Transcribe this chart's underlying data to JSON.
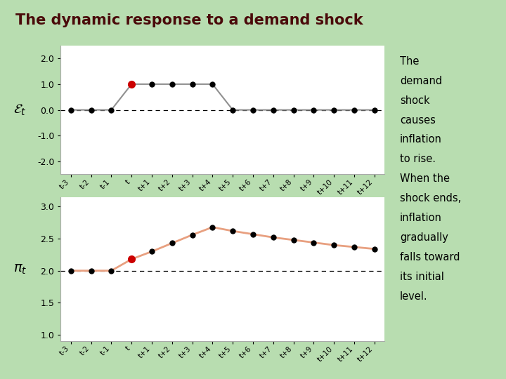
{
  "title": "The dynamic response to a demand shock",
  "title_color": "#4a0a0a",
  "bg_color": "#b8ddb0",
  "plot_bg_color": "#ffffff",
  "annotation_bg": "#f8c0c0",
  "x_labels": [
    "t-3",
    "t-2",
    "t-1",
    "t",
    "t+1",
    "t+2",
    "t+3",
    "t+4",
    "t+5",
    "t+6",
    "t+7",
    "t+8",
    "t+9",
    "t+10",
    "t+11",
    "t+12"
  ],
  "epsilon": [
    0.0,
    0.0,
    0.0,
    1.0,
    1.0,
    1.0,
    1.0,
    1.0,
    0.0,
    0.0,
    0.0,
    0.0,
    0.0,
    0.0,
    0.0,
    0.0
  ],
  "epsilon_ylim": [
    -2.5,
    2.5
  ],
  "epsilon_yticks": [
    -2.0,
    -1.0,
    0.0,
    1.0,
    2.0
  ],
  "epsilon_ytick_labels": [
    "-2.0",
    "-1.0",
    "0.0",
    "1.0",
    "2.0"
  ],
  "epsilon_red_idx": 3,
  "pi": [
    2.0,
    2.0,
    2.0,
    2.18,
    2.3,
    2.43,
    2.56,
    2.68,
    2.62,
    2.57,
    2.52,
    2.48,
    2.44,
    2.4,
    2.37,
    2.34
  ],
  "pi_ylim": [
    0.9,
    3.15
  ],
  "pi_yticks": [
    1.0,
    1.5,
    2.0,
    2.5,
    3.0
  ],
  "pi_ytick_labels": [
    "1.0",
    "1.5",
    "2.0",
    "2.5",
    "3.0"
  ],
  "pi_red_idx": 3,
  "epsilon_line_color": "#909090",
  "pi_line_color": "#e8a080",
  "dot_color": "#000000",
  "red_dot_color": "#cc0000",
  "dashed_line_color": "#000000",
  "annotation_lines": [
    "The",
    "demand",
    "shock",
    "causes",
    "inflation",
    "to rise.",
    "When the",
    "shock ends,",
    "inflation",
    "gradually",
    "falls toward",
    "its initial",
    "level."
  ]
}
